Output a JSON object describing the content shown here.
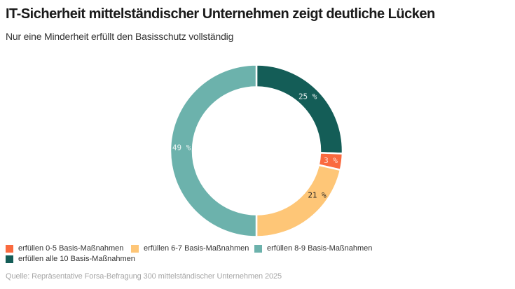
{
  "header": {
    "title": "IT-Sicherheit mittelständischer Unternehmen zeigt deutliche Lücken",
    "subtitle": "Nur eine Minderheit erfüllt den Basisschutz vollständig"
  },
  "chart_data": {
    "type": "pie",
    "variant": "donut",
    "title": "IT-Sicherheit mittelständischer Unternehmen zeigt deutliche Lücken",
    "subtitle": "Nur eine Minderheit erfüllt den Basisschutz vollständig",
    "unit": "%",
    "start_angle": "top",
    "direction": "clockwise",
    "slices": [
      {
        "name": "erfüllen alle 10 Basis-Maßnahmen",
        "value": 25,
        "label": "25 %",
        "color": "#145d57",
        "label_color": "#e8f0ef"
      },
      {
        "name": "erfüllen 0-5 Basis-Maßnahmen",
        "value": 3,
        "label": "3 %",
        "color": "#fa6a3f",
        "label_color": "#fde7de"
      },
      {
        "name": "erfüllen 6-7 Basis-Maßnahmen",
        "value": 21,
        "label": "21 %",
        "color": "#fec677",
        "label_color": "#222222"
      },
      {
        "name": "erfüllen 8-9 Basis-Maßnahmen",
        "value": 49,
        "label": "49 %",
        "color": "#6cb2ac",
        "label_color": "#eef6f5"
      }
    ],
    "legend": {
      "placement": "bottom-left",
      "entries": [
        {
          "label": "erfüllen 0-5 Basis-Maßnahmen",
          "color": "#fa6a3f"
        },
        {
          "label": "erfüllen 6-7 Basis-Maßnahmen",
          "color": "#fec677"
        },
        {
          "label": "erfüllen 8-9 Basis-Maßnahmen",
          "color": "#6cb2ac"
        },
        {
          "label": "erfüllen alle 10 Basis-Maßnahmen",
          "color": "#145d57"
        }
      ]
    },
    "source": "Quelle: Repräsentative Forsa-Befragung 300 mittelständischer Unternehmen 2025"
  }
}
